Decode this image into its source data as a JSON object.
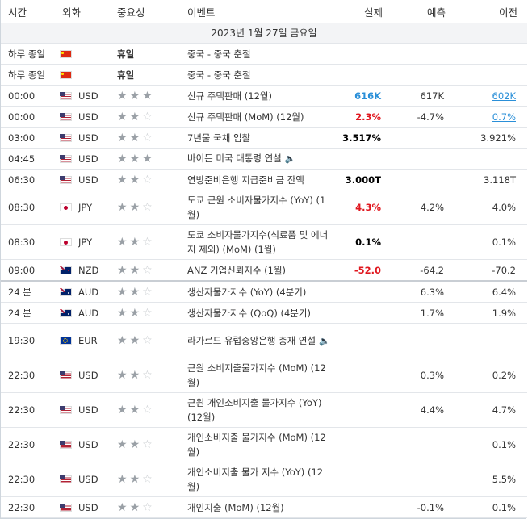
{
  "headers": {
    "time": "시간",
    "currency": "외화",
    "importance": "중요성",
    "event": "이벤트",
    "actual": "실제",
    "forecast": "예측",
    "previous": "이전"
  },
  "date_row": "2023년 1월 27일 금요일",
  "icons": {
    "speaker": "speaker-icon",
    "star": "star-icon"
  },
  "colors": {
    "red": "#e0171f",
    "blue": "#2a8fd8"
  },
  "rows": [
    {
      "time": "하루 종일",
      "flag": "cn",
      "currency": "",
      "holiday": "휴일",
      "stars": 0,
      "event": "중국 - 중국 춘절",
      "actual": "",
      "forecast": "",
      "previous": ""
    },
    {
      "time": "하루 종일",
      "flag": "cn",
      "currency": "",
      "holiday": "휴일",
      "stars": 0,
      "event": "중국 - 중국 춘절",
      "actual": "",
      "forecast": "",
      "previous": ""
    },
    {
      "time": "00:00",
      "flag": "us",
      "currency": "USD",
      "stars": 3,
      "event": "신규 주택판매 (12월)",
      "actual": "616K",
      "actual_color": "blue",
      "forecast": "617K",
      "previous": "602K",
      "previous_link": true
    },
    {
      "time": "00:00",
      "flag": "us",
      "currency": "USD",
      "stars": 2,
      "event": "신규 주택판매 (MoM) (12월)",
      "actual": "2.3%",
      "actual_color": "red",
      "forecast": "-4.7%",
      "previous": "0.7%",
      "previous_link": true
    },
    {
      "time": "03:00",
      "flag": "us",
      "currency": "USD",
      "stars": 2,
      "event": "7년물 국채 입찰",
      "actual": "3.517%",
      "actual_color": "black",
      "forecast": "",
      "previous": "3.921%"
    },
    {
      "time": "04:45",
      "flag": "us",
      "currency": "USD",
      "stars": 3,
      "event": "바이든 미국 대통령 연설",
      "speech": true,
      "actual": "",
      "forecast": "",
      "previous": ""
    },
    {
      "time": "06:30",
      "flag": "us",
      "currency": "USD",
      "stars": 2,
      "event": "연방준비은행 지급준비금 잔액",
      "actual": "3.000T",
      "actual_color": "black",
      "forecast": "",
      "previous": "3.118T"
    },
    {
      "time": "08:30",
      "flag": "jp",
      "currency": "JPY",
      "stars": 2,
      "event": "도쿄 근원 소비자물가지수 (YoY) (1월)",
      "tall": true,
      "actual": "4.3%",
      "actual_color": "red",
      "forecast": "4.2%",
      "previous": "4.0%"
    },
    {
      "time": "08:30",
      "flag": "jp",
      "currency": "JPY",
      "stars": 2,
      "event": "도쿄 소비자물가지수(식료품 및 에너지 제외) (MoM) (1월)",
      "tall": true,
      "actual": "0.1%",
      "actual_color": "black",
      "forecast": "",
      "previous": "0.1%"
    },
    {
      "time": "09:00",
      "flag": "nz",
      "currency": "NZD",
      "stars": 2,
      "event": "ANZ 기업신뢰지수 (1월)",
      "actual": "-52.0",
      "actual_color": "red",
      "forecast": "-64.2",
      "previous": "-70.2"
    },
    {
      "time": "24 분",
      "flag": "au",
      "currency": "AUD",
      "stars": 2,
      "event": "생산자물가지수 (YoY) (4분기)",
      "sep": true,
      "actual": "",
      "forecast": "6.3%",
      "previous": "6.4%"
    },
    {
      "time": "24 분",
      "flag": "au",
      "currency": "AUD",
      "stars": 2,
      "event": "생산자물가지수 (QoQ) (4분기)",
      "actual": "",
      "forecast": "1.7%",
      "previous": "1.9%"
    },
    {
      "time": "19:30",
      "flag": "eu",
      "currency": "EUR",
      "stars": 2,
      "event": "라가르드 유럽중앙은행 총재 연설",
      "speech": true,
      "tall": true,
      "actual": "",
      "forecast": "",
      "previous": ""
    },
    {
      "time": "22:30",
      "flag": "us",
      "currency": "USD",
      "stars": 2,
      "event": "근원 소비지출물가지수 (MoM) (12월)",
      "tall": true,
      "actual": "",
      "forecast": "0.3%",
      "previous": "0.2%"
    },
    {
      "time": "22:30",
      "flag": "us",
      "currency": "USD",
      "stars": 2,
      "event": "근원 개인소비지출 물가지수 (YoY) (12월)",
      "tall": true,
      "actual": "",
      "forecast": "4.4%",
      "previous": "4.7%"
    },
    {
      "time": "22:30",
      "flag": "us",
      "currency": "USD",
      "stars": 2,
      "event": "개인소비지출 물가지수 (MoM) (12월)",
      "tall": true,
      "actual": "",
      "forecast": "",
      "previous": "0.1%"
    },
    {
      "time": "22:30",
      "flag": "us",
      "currency": "USD",
      "stars": 2,
      "event": "개인소비지출 물가 지수 (YoY) (12월)",
      "tall": true,
      "actual": "",
      "forecast": "",
      "previous": "5.5%"
    },
    {
      "time": "22:30",
      "flag": "us",
      "currency": "USD",
      "stars": 2,
      "event": "개인지출 (MoM) (12월)",
      "actual": "",
      "forecast": "-0.1%",
      "previous": "0.1%"
    }
  ]
}
